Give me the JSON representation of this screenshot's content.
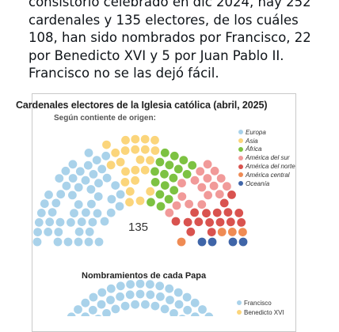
{
  "post": {
    "text": "consistorio celebrado en dic 2024, hay 252 cardenales y 135 electores, de los cuáles 108, han sido nombrados por Francisco, 22 por Benedicto XVI y 5 por Juan Pablo II. Francisco no se las dejó fácil."
  },
  "infographic": {
    "title": "Cardenales electores de la Iglesia católica (abril, 2025)",
    "subtitle": "Según contiente de origen:",
    "total_label": "135",
    "section2_title": "Nombramientos de cada Papa"
  },
  "chart_data": [
    {
      "type": "parliament",
      "title": "Cardenales electores de la Iglesia católica (abril, 2025)",
      "subtitle": "Según contiente de origen:",
      "total": 135,
      "legend_placement": "right",
      "series": [
        {
          "name": "Europa",
          "value": 53,
          "color": "#a9d2ea"
        },
        {
          "name": "Asia",
          "value": 23,
          "color": "#fbd57b"
        },
        {
          "name": "África",
          "value": 18,
          "color": "#7dc242"
        },
        {
          "name": "América del sur",
          "value": 17,
          "color": "#f19a99"
        },
        {
          "name": "América del norte",
          "value": 16,
          "color": "#d9534f"
        },
        {
          "name": "América central",
          "value": 4,
          "color": "#ef8b54"
        },
        {
          "name": "Oceanía",
          "value": 4,
          "color": "#3f65a8"
        }
      ]
    },
    {
      "type": "parliament",
      "title": "Nombramientos de cada Papa",
      "legend_placement": "right",
      "series": [
        {
          "name": "Francisco",
          "value": 108,
          "color": "#a9d2ea"
        },
        {
          "name": "Benedicto XVI",
          "value": 22,
          "color": "#fbd57b"
        }
      ]
    }
  ]
}
